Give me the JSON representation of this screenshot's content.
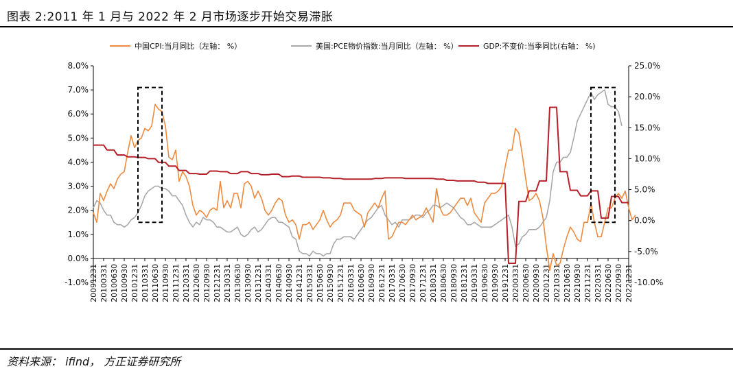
{
  "header": {
    "title": "图表 2:2011 年 1 月与 2022 年 2 月市场逐步开始交易滞胀"
  },
  "footer": {
    "source": "资料来源： ifind， 方正证券研究所"
  },
  "colors": {
    "cpi": "#ee8a3e",
    "pce": "#a8a8a8",
    "gdp": "#b51f28",
    "box": "#000000"
  },
  "chart_data": {
    "type": "line",
    "legend": {
      "placement": "top",
      "entries": [
        "中国CPI:当月同比（左轴： %）",
        "美国:PCE物价指数:当月同比（左轴： %）",
        "GDP:不变价:当季同比(右轴： %)"
      ]
    },
    "left_axis": {
      "min": -1.0,
      "max": 8.0,
      "ticks": [
        "-1.0%",
        "0.0%",
        "1.0%",
        "2.0%",
        "3.0%",
        "4.0%",
        "5.0%",
        "6.0%",
        "7.0%",
        "8.0%"
      ]
    },
    "right_axis": {
      "min": -10,
      "max": 25,
      "ticks": [
        "-10.0%",
        "-5.0%",
        "0.0%",
        "5.0%",
        "10.0%",
        "15.0%",
        "20.0%",
        "25.0%"
      ]
    },
    "x_ticks": [
      "20091231",
      "20100331",
      "20100630",
      "20100930",
      "20101231",
      "20110331",
      "20110630",
      "20110930",
      "20111231",
      "20120331",
      "20120630",
      "20120930",
      "20121231",
      "20130331",
      "20130630",
      "20130930",
      "20131231",
      "20140331",
      "20140630",
      "20140930",
      "20141231",
      "20150331",
      "20150630",
      "20150930",
      "20151231",
      "20160331",
      "20160630",
      "20160930",
      "20161231",
      "20170331",
      "20170630",
      "20170930",
      "20171231",
      "20180331",
      "20180630",
      "20180930",
      "20181231",
      "20190331",
      "20190630",
      "20190930",
      "20191231",
      "20200331",
      "20200630",
      "20200930",
      "20201231",
      "20210331",
      "20210630",
      "20210930",
      "20211231",
      "20220331",
      "20220630",
      "20220930",
      "20221231"
    ],
    "highlight_boxes": [
      {
        "from": "20110131",
        "to": "20110831"
      },
      {
        "from": "20220131",
        "to": "20220831"
      }
    ],
    "series": [
      {
        "name": "中国CPI:当月同比（左轴： %）",
        "axis": "left",
        "key": "cpi",
        "step": 1,
        "values": [
          1.9,
          1.5,
          2.7,
          2.4,
          2.8,
          3.1,
          2.9,
          3.3,
          3.5,
          3.6,
          4.4,
          5.1,
          4.6,
          4.9,
          5.0,
          5.4,
          5.3,
          5.5,
          6.4,
          6.2,
          6.1,
          5.5,
          4.2,
          4.1,
          4.5,
          3.2,
          3.6,
          3.4,
          3.0,
          2.2,
          1.8,
          2.0,
          1.9,
          1.7,
          2.0,
          2.1,
          2.0,
          3.2,
          2.1,
          2.4,
          2.1,
          2.7,
          2.7,
          2.1,
          3.1,
          3.2,
          3.0,
          2.5,
          2.8,
          2.5,
          2.0,
          1.8,
          2.0,
          2.3,
          2.5,
          2.4,
          1.8,
          1.5,
          1.6,
          1.4,
          0.8,
          1.4,
          1.4,
          1.5,
          1.2,
          1.4,
          1.6,
          2.0,
          1.6,
          1.3,
          1.5,
          1.6,
          1.8,
          2.3,
          2.3,
          2.3,
          2.0,
          1.9,
          1.8,
          1.3,
          1.9,
          2.1,
          2.3,
          2.1,
          2.5,
          2.8,
          0.8,
          0.9,
          1.2,
          1.5,
          1.5,
          1.4,
          1.6,
          1.8,
          1.6,
          1.7,
          1.8,
          2.1,
          1.8,
          1.5,
          2.9,
          2.1,
          1.8,
          1.8,
          1.9,
          2.1,
          2.3,
          2.5,
          2.5,
          2.2,
          2.5,
          1.9,
          1.7,
          1.5,
          2.3,
          2.5,
          2.7,
          2.7,
          2.8,
          3.0,
          3.8,
          4.5,
          4.5,
          5.4,
          5.2,
          4.3,
          3.3,
          2.4,
          2.5,
          2.7,
          2.4,
          1.7,
          0.5,
          -0.5,
          0.2,
          -0.3,
          -0.2,
          0.4,
          0.9,
          1.3,
          1.1,
          0.8,
          0.7,
          1.5,
          1.5,
          2.3,
          1.5,
          0.9,
          0.9,
          1.5,
          2.1,
          2.1,
          2.5,
          2.7,
          2.5,
          2.8,
          2.1,
          1.6,
          1.8
        ]
      },
      {
        "name": "美国:PCE物价指数:当月同比（左轴： %）",
        "axis": "left",
        "key": "pce",
        "step": 1,
        "values": [
          2.1,
          2.4,
          2.3,
          2.0,
          1.8,
          1.8,
          1.5,
          1.4,
          1.4,
          1.3,
          1.4,
          1.6,
          1.7,
          1.9,
          2.2,
          2.6,
          2.8,
          2.9,
          3.0,
          3.0,
          2.9,
          2.9,
          2.8,
          2.6,
          2.6,
          2.4,
          2.2,
          1.8,
          1.5,
          1.3,
          1.5,
          1.4,
          1.7,
          1.6,
          1.6,
          1.5,
          1.3,
          1.3,
          1.2,
          1.1,
          1.1,
          1.2,
          1.3,
          1.0,
          0.9,
          1.0,
          1.2,
          1.3,
          1.1,
          1.2,
          1.4,
          1.6,
          1.7,
          1.7,
          1.5,
          1.5,
          1.4,
          1.3,
          0.9,
          0.8,
          0.3,
          0.2,
          0.2,
          0.1,
          0.3,
          0.2,
          0.2,
          0.1,
          0.2,
          0.2,
          0.6,
          0.8,
          0.8,
          0.9,
          0.9,
          0.9,
          0.8,
          1.0,
          1.2,
          1.4,
          1.6,
          1.7,
          1.9,
          2.1,
          2.2,
          1.8,
          1.6,
          1.4,
          1.5,
          1.3,
          1.6,
          1.6,
          1.6,
          1.7,
          1.8,
          1.8,
          1.7,
          1.9,
          2.0,
          2.2,
          2.2,
          2.1,
          2.2,
          2.3,
          2.2,
          2.1,
          1.9,
          1.7,
          1.6,
          1.4,
          1.4,
          1.5,
          1.4,
          1.3,
          1.3,
          1.3,
          1.3,
          1.4,
          1.5,
          1.6,
          1.7,
          1.8,
          1.3,
          0.5,
          0.6,
          0.9,
          1.0,
          1.2,
          1.2,
          1.2,
          1.3,
          1.5,
          1.7,
          2.4,
          3.6,
          4.0,
          4.0,
          4.2,
          4.2,
          4.4,
          5.0,
          5.7,
          6.0,
          6.3,
          6.6,
          6.9,
          6.6,
          6.8,
          6.9,
          7.0,
          6.4,
          6.3,
          6.3,
          6.1,
          5.5
        ]
      },
      {
        "name": "GDP:不变价:当季同比(右轴： %)",
        "axis": "right",
        "key": "gdp",
        "step": 3,
        "values": [
          12.2,
          12.2,
          11.4,
          10.6,
          10.3,
          10.2,
          10.0,
          9.4,
          8.8,
          8.1,
          7.6,
          7.5,
          8.0,
          7.9,
          7.6,
          7.9,
          7.6,
          7.4,
          7.5,
          7.1,
          7.2,
          7.0,
          7.0,
          6.9,
          6.8,
          6.7,
          6.7,
          6.7,
          6.8,
          6.9,
          6.9,
          6.8,
          6.8,
          6.8,
          6.7,
          6.5,
          6.4,
          6.4,
          6.2,
          6.0,
          6.0,
          -6.9,
          3.1,
          4.8,
          6.4,
          18.3,
          7.9,
          4.9,
          4.0,
          4.8,
          0.4,
          3.9,
          2.9
        ]
      }
    ]
  }
}
